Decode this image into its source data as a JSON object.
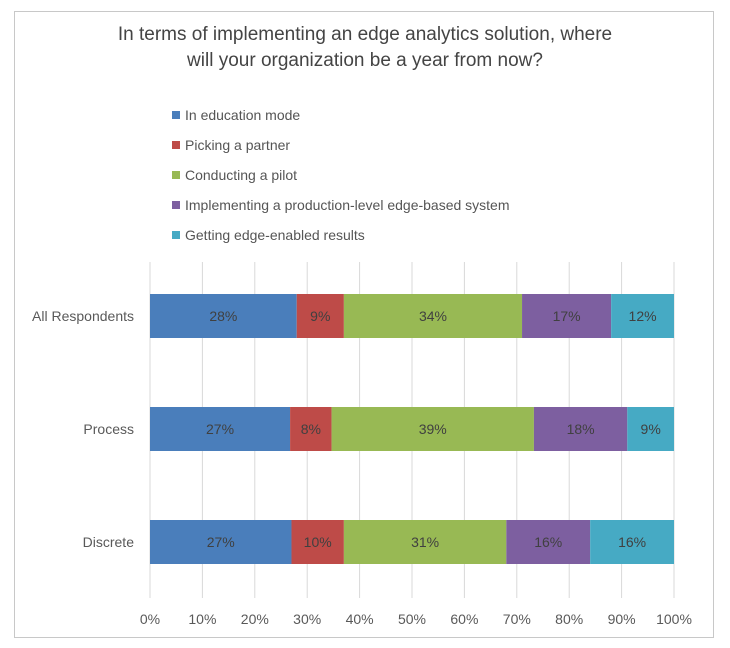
{
  "chart_data": {
    "type": "bar",
    "orientation": "horizontal",
    "stacked": true,
    "title": "In terms of implementing an edge analytics solution, where will your organization be a year from now?",
    "title_lines": [
      "In terms of implementing an edge analytics solution, where",
      "will your organization be a year from now?"
    ],
    "categories": [
      "All Respondents",
      "Process",
      "Discrete"
    ],
    "series": [
      {
        "name": "In education mode",
        "color": "#4a7ebb",
        "values": [
          28,
          27,
          27
        ]
      },
      {
        "name": "Picking a partner",
        "color": "#be4b48",
        "values": [
          9,
          8,
          10
        ]
      },
      {
        "name": "Conducting a pilot",
        "color": "#98b954",
        "values": [
          34,
          39,
          31
        ]
      },
      {
        "name": "Implementing a production-level edge-based system",
        "color": "#7d5fa0",
        "values": [
          17,
          18,
          16
        ]
      },
      {
        "name": "Getting edge-enabled results",
        "color": "#46aac4",
        "values": [
          12,
          9,
          16
        ]
      }
    ],
    "data_labels": [
      [
        "28%",
        "9%",
        "34%",
        "17%",
        "12%"
      ],
      [
        "27%",
        "8%",
        "39%",
        "18%",
        "9%"
      ],
      [
        "27%",
        "10%",
        "31%",
        "16%",
        "16%"
      ]
    ],
    "xlim": [
      0,
      100
    ],
    "x_ticks": [
      "0%",
      "10%",
      "20%",
      "30%",
      "40%",
      "50%",
      "60%",
      "70%",
      "80%",
      "90%",
      "100%"
    ],
    "gridlines": true,
    "legend_position": "top"
  }
}
